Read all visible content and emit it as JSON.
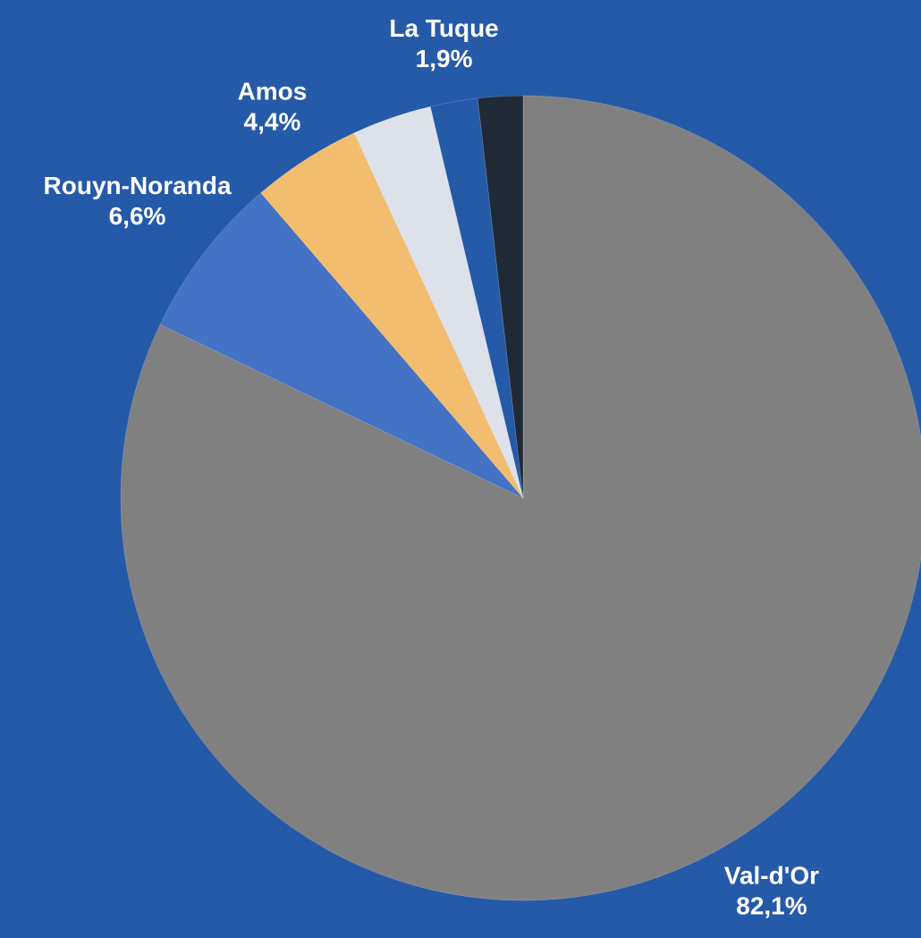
{
  "chart_data": {
    "type": "pie",
    "categories": [
      "Val-d'Or",
      "Rouyn-Noranda",
      "Amos",
      null,
      "La Tuque",
      null
    ],
    "values": [
      82.1,
      6.6,
      4.4,
      3.2,
      1.9,
      1.8
    ],
    "value_labels": [
      "82,1%",
      "6,6%",
      "4,4%",
      null,
      "1,9%",
      null
    ],
    "colors": [
      "#808080",
      "#4472c4",
      "#f3bd6f",
      "#dde2ea",
      "#255aa9",
      "#1f2a36"
    ]
  }
}
